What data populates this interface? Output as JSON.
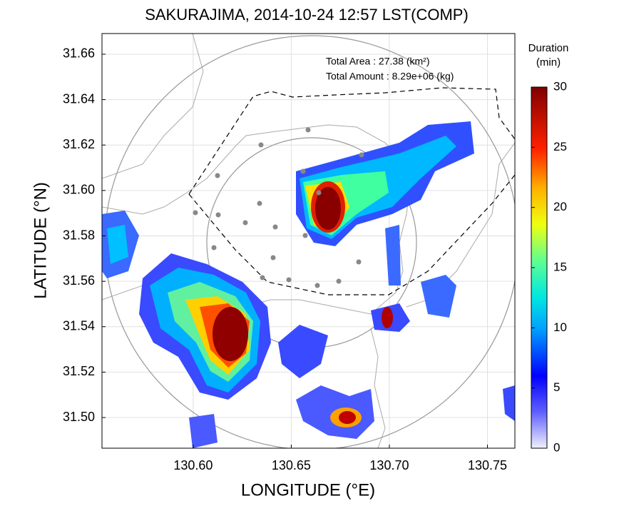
{
  "chart_data": {
    "type": "radar-map",
    "title": "SAKURAJIMA, 2014-10-24 12:57 LST(COMP)",
    "x_label": "LONGITUDE (°E)",
    "y_label": "LATITUDE (°N)",
    "annotations": [
      "Total Area  : 27.38 (km²)",
      "Total Amount : 8.29e+06 (kg)"
    ],
    "xlim": [
      130.5535,
      130.764
    ],
    "xticks": [
      {
        "value": 130.6,
        "label": "130.60"
      },
      130.65,
      {
        "value": 130.7,
        "label": "130.70"
      },
      130.75
    ],
    "ylim": [
      31.4865,
      31.6691
    ],
    "yticks": [
      {
        "value": 31.5,
        "label": "31.50"
      },
      31.52,
      31.54,
      31.56,
      31.58,
      {
        "value": 31.6,
        "label": "31.60"
      },
      31.62,
      31.64,
      31.66
    ],
    "grid": true,
    "colorbar": {
      "title": [
        "Duration",
        "(min)"
      ],
      "lim": [
        0,
        30
      ],
      "ticks": [
        0,
        5,
        10,
        15,
        20,
        25,
        30
      ]
    }
  }
}
